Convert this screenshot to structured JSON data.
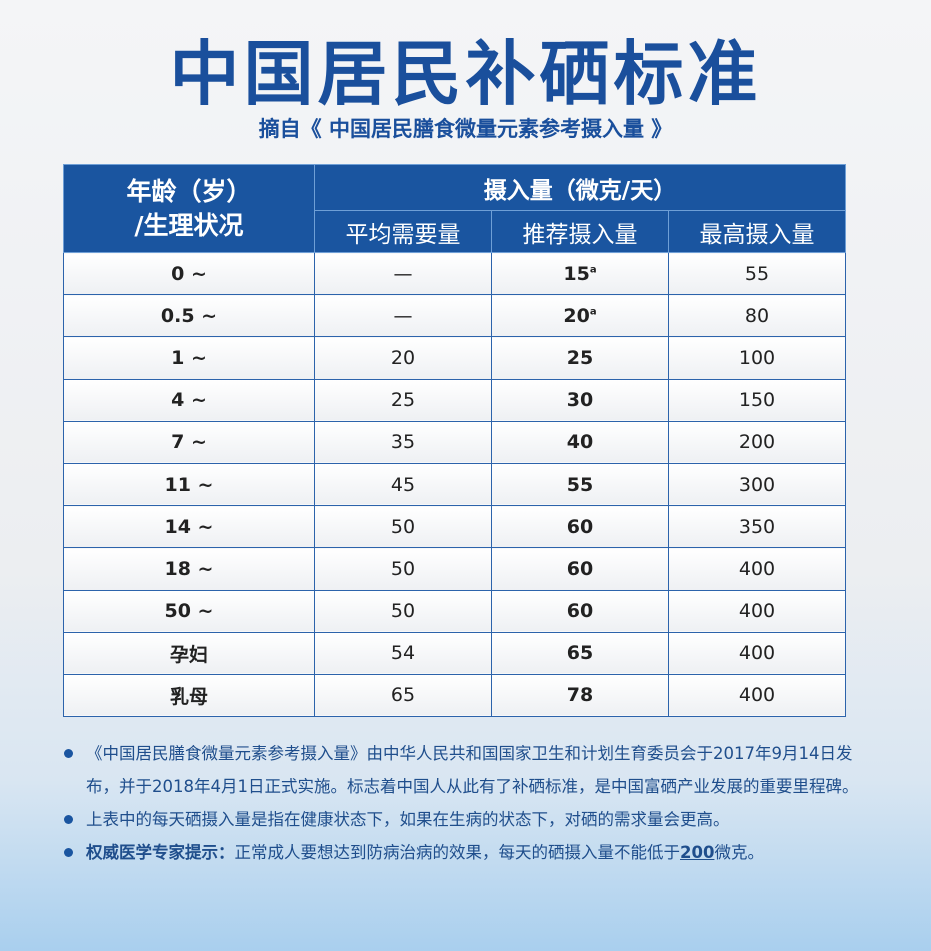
{
  "title": "中国居民补硒标准",
  "subtitle": "摘自《 中国居民膳食微量元素参考摄入量 》",
  "table": {
    "age_header_line1": "年龄（岁）",
    "age_header_line2": "/生理状况",
    "group_header": "摄入量（微克/天）",
    "columns": [
      "平均需要量",
      "推荐摄入量",
      "最高摄入量"
    ],
    "rows": [
      {
        "age": "0 ~",
        "ear": "—",
        "rni": "15",
        "rni_note": "a",
        "ul": "55"
      },
      {
        "age": "0.5 ~",
        "ear": "—",
        "rni": "20",
        "rni_note": "a",
        "ul": "80"
      },
      {
        "age": "1 ~",
        "ear": "20",
        "rni": "25",
        "ul": "100"
      },
      {
        "age": "4 ~",
        "ear": "25",
        "rni": "30",
        "ul": "150"
      },
      {
        "age": "7 ~",
        "ear": "35",
        "rni": "40",
        "ul": "200"
      },
      {
        "age": "11 ~",
        "ear": "45",
        "rni": "55",
        "ul": "300"
      },
      {
        "age": "14 ~",
        "ear": "50",
        "rni": "60",
        "ul": "350"
      },
      {
        "age": "18 ~",
        "ear": "50",
        "rni": "60",
        "ul": "400"
      },
      {
        "age": "50 ~",
        "ear": "50",
        "rni": "60",
        "ul": "400"
      },
      {
        "age": "孕妇",
        "ear": "54",
        "rni": "65",
        "ul": "400"
      },
      {
        "age": "乳母",
        "ear": "65",
        "rni": "78",
        "ul": "400"
      }
    ]
  },
  "notes": {
    "n1": "《中国居民膳食微量元素参考摄入量》由中华人民共和国国家卫生和计划生育委员会于2017年9月14日发布，并于2018年4月1日正式实施。标志着中国人从此有了补硒标准，是中国富硒产业发展的重要里程碑。",
    "n2": "上表中的每天硒摄入量是指在健康状态下，如果在生病的状态下，对硒的需求量会更高。",
    "n3_label": "权威医学专家提示：",
    "n3_text": "正常成人要想达到防病治病的效果，每天的硒摄入量不能低于",
    "n3_value": "200",
    "n3_unit": "微克。"
  },
  "colors": {
    "brand": "#1a55a0",
    "title": "#1a4f9c"
  }
}
